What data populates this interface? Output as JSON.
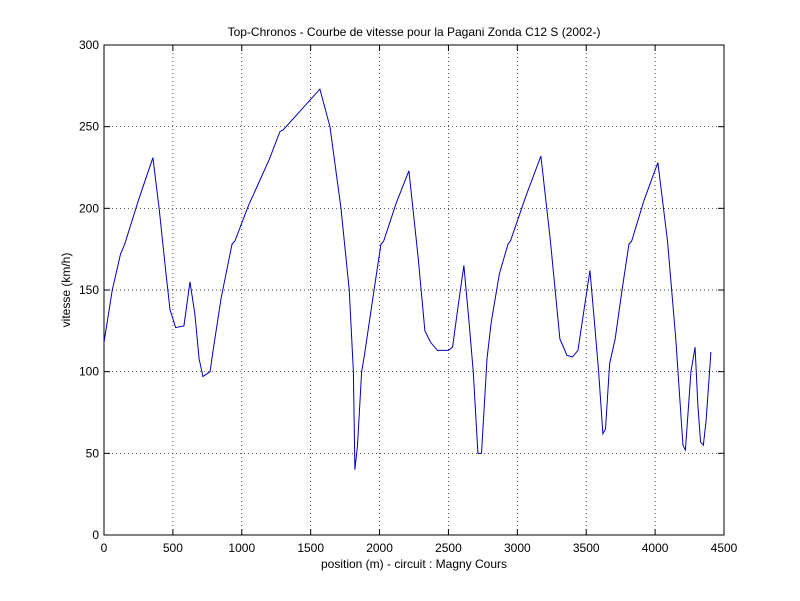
{
  "chart_data": {
    "type": "line",
    "title": "Top-Chronos - Courbe de vitesse pour la Pagani Zonda C12 S (2002-)",
    "x_label": "position (m) - circuit : Magny Cours",
    "y_label": "vitesse (km/h)",
    "x": [
      0,
      60,
      120,
      150,
      250,
      355,
      400,
      450,
      479,
      520,
      580,
      624,
      660,
      690,
      718,
      770,
      790,
      850,
      929,
      950,
      1050,
      1200,
      1277,
      1300,
      1450,
      1567,
      1640,
      1720,
      1780,
      1810,
      1821,
      1840,
      1870,
      1890,
      1960,
      2010,
      2030,
      2120,
      2213,
      2280,
      2329,
      2370,
      2420,
      2500,
      2530,
      2570,
      2612,
      2650,
      2680,
      2714,
      2740,
      2780,
      2810,
      2870,
      2932,
      2950,
      3060,
      3171,
      3240,
      3309,
      3360,
      3400,
      3440,
      3470,
      3527,
      3560,
      3590,
      3621,
      3640,
      3670,
      3710,
      3760,
      3810,
      3830,
      3920,
      4020,
      4090,
      4150,
      4202,
      4220,
      4260,
      4290,
      4310,
      4330,
      4350,
      4370,
      4405
    ],
    "series": [
      {
        "name": "vitesse",
        "color": "#0000bf",
        "values": [
          118,
          150,
          172,
          178,
          205,
          231,
          200,
          160,
          138,
          127,
          128,
          155,
          135,
          108,
          97,
          100,
          112,
          145,
          178,
          180,
          202,
          230,
          247,
          248,
          262,
          273,
          250,
          200,
          150,
          100,
          40,
          55,
          100,
          110,
          150,
          178,
          180,
          203,
          223,
          170,
          125,
          118,
          113,
          113,
          115,
          140,
          165,
          130,
          100,
          50,
          50,
          108,
          130,
          160,
          178,
          180,
          207,
          232,
          180,
          120,
          110,
          109,
          113,
          130,
          162,
          130,
          100,
          62,
          65,
          105,
          120,
          150,
          178,
          180,
          205,
          228,
          180,
          120,
          55,
          52,
          100,
          115,
          80,
          57,
          55,
          70,
          112
        ]
      }
    ],
    "xlim": [
      0,
      4500
    ],
    "xticks": [
      0,
      500,
      1000,
      1500,
      2000,
      2500,
      3000,
      3500,
      4000,
      4500
    ],
    "ylim": [
      0,
      300
    ],
    "yticks": [
      0,
      50,
      100,
      150,
      200,
      250,
      300
    ],
    "grid": true
  }
}
